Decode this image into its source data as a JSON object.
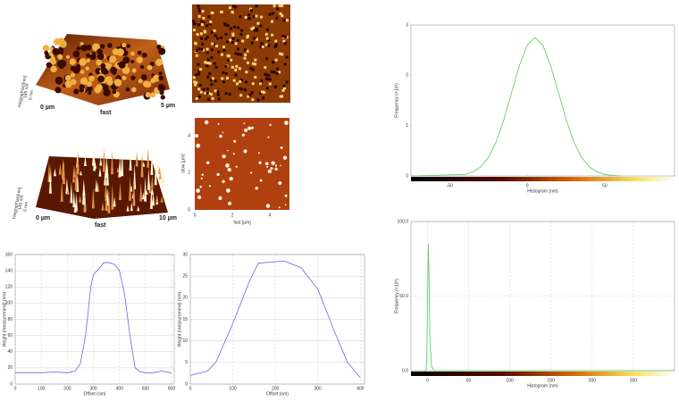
{
  "afm_panels": [
    {
      "origin": "0 µm",
      "axis": "fast",
      "extent": "5 µm",
      "zmax": "185 nm",
      "zmin": "0 nm",
      "zlabel": "Height(Flat)[nm]"
    },
    {
      "origin": "0 µm",
      "axis": "fast",
      "extent": "10 µm",
      "zmax": "140 nm",
      "zmin": "0 nm",
      "zlabel": "Height(Flat)[nm]"
    },
    {
      "ylabel": "slow [µm]",
      "xlabel": "fast [µm]",
      "xticks": [
        "0",
        "2",
        "4"
      ],
      "yticks": [
        "0",
        "2",
        "4"
      ]
    }
  ],
  "chart_data": [
    {
      "type": "line",
      "xlabel": "Offset (nm)",
      "ylabel": "Height (measurement) (nm)",
      "xlim": [
        0,
        610
      ],
      "ylim": [
        0,
        160
      ],
      "xticks": [
        0,
        100,
        200,
        300,
        400,
        500,
        600
      ],
      "yticks": [
        0,
        20,
        40,
        60,
        80,
        100,
        120,
        140,
        160
      ],
      "grid": true,
      "x": [
        0,
        50,
        100,
        150,
        200,
        230,
        250,
        270,
        290,
        300,
        320,
        340,
        360,
        380,
        400,
        420,
        440,
        460,
        480,
        500,
        530,
        560,
        600
      ],
      "series": [
        {
          "color": "#6666dd",
          "values": [
            14,
            14,
            14,
            15,
            14,
            16,
            25,
            60,
            120,
            135,
            142,
            150,
            150,
            148,
            140,
            110,
            60,
            20,
            15,
            14,
            14,
            16,
            14
          ]
        }
      ]
    },
    {
      "type": "line",
      "xlabel": "Offset (nm)",
      "ylabel": "Height (measurement) (nm)",
      "xlim": [
        0,
        410
      ],
      "ylim": [
        0,
        30
      ],
      "xticks": [
        0,
        100,
        200,
        300,
        400
      ],
      "yticks": [
        0,
        5,
        10,
        15,
        20,
        25,
        30
      ],
      "grid": true,
      "x": [
        0,
        40,
        60,
        100,
        140,
        160,
        220,
        260,
        300,
        340,
        370,
        400
      ],
      "series": [
        {
          "color": "#6666dd",
          "values": [
            2,
            3,
            5,
            14,
            24,
            28,
            28.5,
            27,
            22,
            12,
            5,
            1.5
          ]
        }
      ]
    },
    {
      "type": "histogram",
      "xlabel": "Histogram (nm)",
      "ylabel": "Frequency (×10³)",
      "xlim": [
        -75,
        95
      ],
      "ylim": [
        0,
        3
      ],
      "xticks": [
        -50,
        0,
        50
      ],
      "yticks": [
        0,
        1,
        2,
        3
      ],
      "grid": false,
      "x": [
        -75,
        -40,
        -35,
        -30,
        -25,
        -20,
        -15,
        -10,
        -5,
        0,
        5,
        10,
        15,
        20,
        25,
        30,
        35,
        40,
        45,
        50,
        55,
        60
      ],
      "series": [
        {
          "color": "#55cc55",
          "values": [
            0,
            0.03,
            0.08,
            0.18,
            0.37,
            0.68,
            1.13,
            1.67,
            2.2,
            2.6,
            2.75,
            2.6,
            2.2,
            1.67,
            1.13,
            0.68,
            0.37,
            0.18,
            0.08,
            0.03,
            0.01,
            0
          ]
        }
      ]
    },
    {
      "type": "histogram",
      "xlabel": "Histogram (nm)",
      "ylabel": "Frequency (×10³)",
      "xlim": [
        -20,
        300
      ],
      "ylim": [
        0,
        100
      ],
      "xticks": [
        0,
        50,
        100,
        150,
        200,
        250
      ],
      "yticks": [
        {
          "value": 0,
          "label": "0.0"
        },
        {
          "value": 50,
          "label": "50.0"
        },
        {
          "value": 100,
          "label": "100.0"
        }
      ],
      "grid": true,
      "x": [
        -5,
        -2,
        -1,
        0,
        1,
        2,
        3,
        5,
        8,
        300
      ],
      "series": [
        {
          "color": "#55cc55",
          "values": [
            0,
            0,
            5,
            40,
            85,
            60,
            20,
            3,
            0,
            0
          ]
        }
      ]
    }
  ]
}
